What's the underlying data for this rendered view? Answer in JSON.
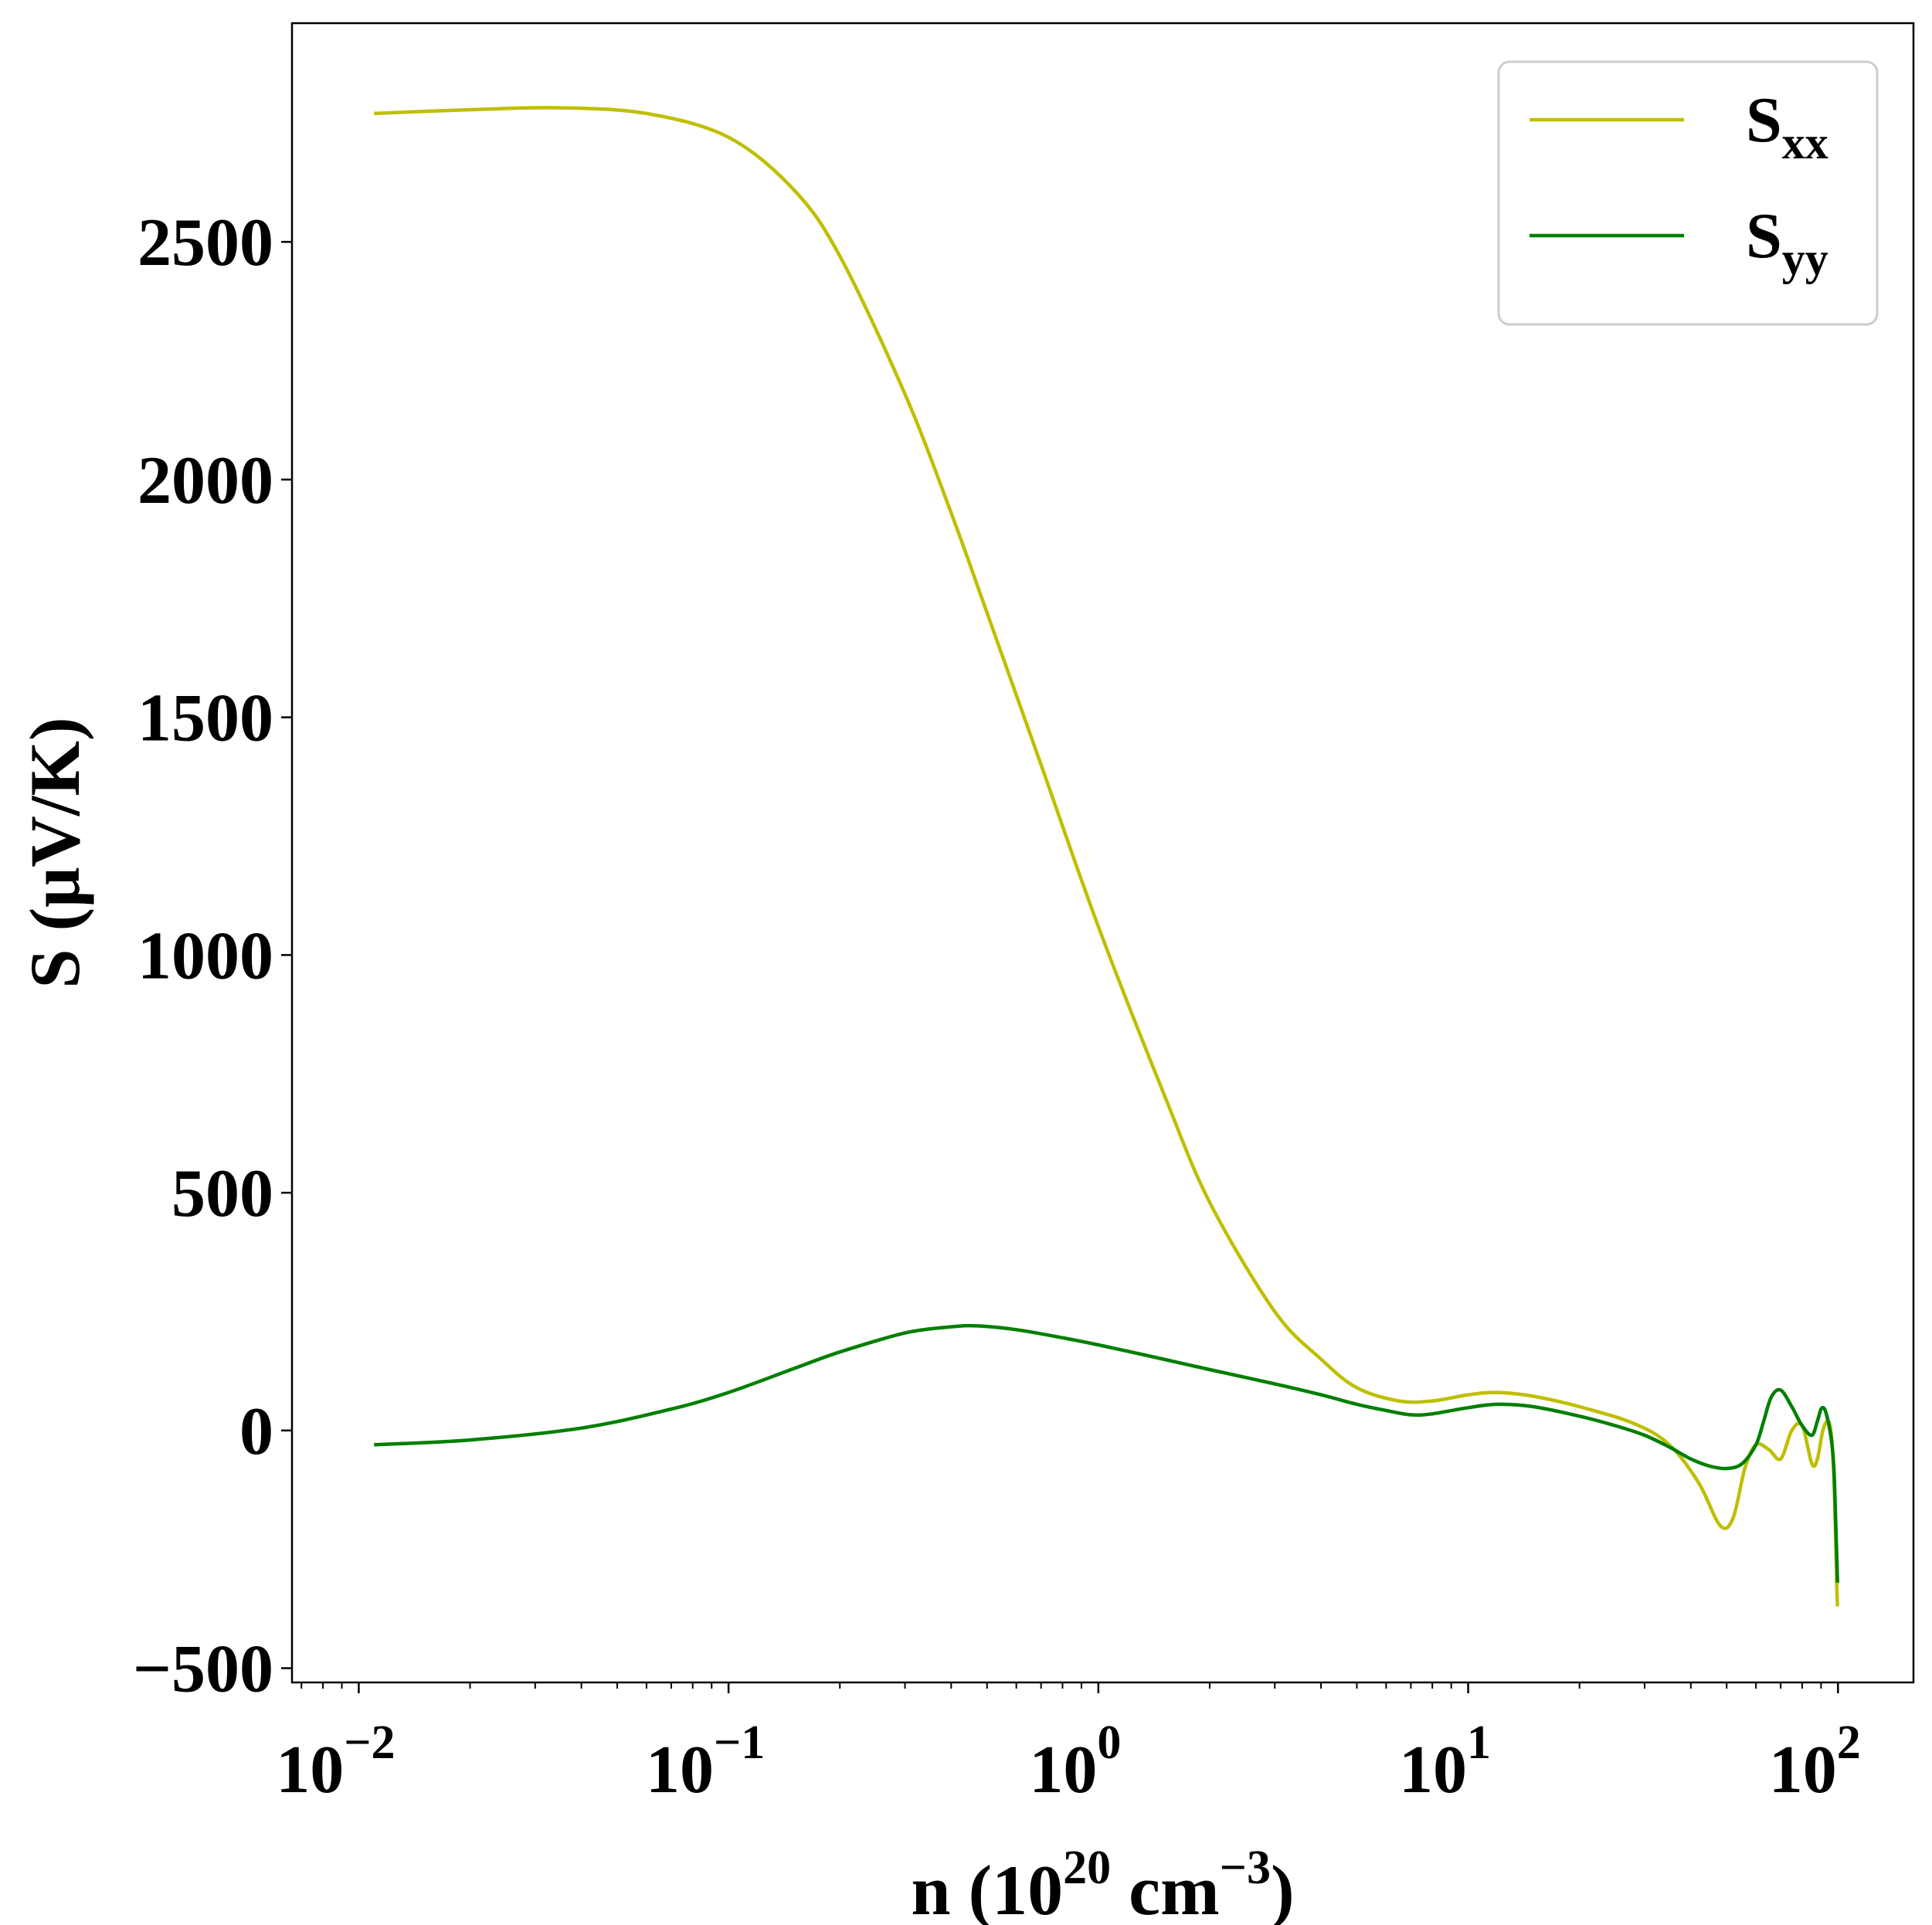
{
  "chart_data": {
    "type": "line",
    "title": "",
    "xlabel": {
      "prefix": "n (10",
      "sup1": "20",
      "middle": " cm",
      "sup2": "−3",
      "suffix": ")"
    },
    "ylabel": "S (μV/K)",
    "xscale": "log",
    "xlim": [
      0.0066,
      160
    ],
    "ylim": [
      -530,
      2960
    ],
    "grid": false,
    "legend_position": "top-right",
    "x_ticks": [
      {
        "value": 0.01,
        "base": "10",
        "exp": "−2"
      },
      {
        "value": 0.1,
        "base": "10",
        "exp": "−1"
      },
      {
        "value": 1,
        "base": "10",
        "exp": "0"
      },
      {
        "value": 10,
        "base": "10",
        "exp": "1"
      },
      {
        "value": 100,
        "base": "10",
        "exp": "2"
      }
    ],
    "y_ticks": [
      {
        "value": 2500,
        "label": "2500"
      },
      {
        "value": 2000,
        "label": "2000"
      },
      {
        "value": 1500,
        "label": "1500"
      },
      {
        "value": 1000,
        "label": "1000"
      },
      {
        "value": 500,
        "label": "500"
      },
      {
        "value": 0,
        "label": "0"
      },
      {
        "value": -500,
        "label": "−500"
      }
    ],
    "series": [
      {
        "name": "S",
        "name_sub": "xx",
        "color": "#bfbf00",
        "x": [
          0.011,
          0.02,
          0.035,
          0.06,
          0.1,
          0.15,
          0.2,
          0.3,
          0.4,
          0.5,
          0.7,
          1.0,
          1.5,
          2.0,
          3.0,
          4.0,
          5.0,
          6.5,
          8.0,
          10.0,
          12.0,
          15.0,
          20.0,
          28.0,
          35.0,
          42.0,
          48.0,
          52.0,
          56.0,
          60.0,
          65.0,
          70.0,
          75.0,
          80.0,
          85.0,
          88.0,
          91.0,
          94.0,
          96.0,
          97.5,
          98.5,
          99.2,
          99.7
        ],
        "y": [
          2770,
          2778,
          2782,
          2770,
          2720,
          2610,
          2470,
          2180,
          1930,
          1720,
          1400,
          1060,
          710,
          480,
          250,
          150,
          90,
          62,
          62,
          75,
          80,
          72,
          50,
          15,
          -30,
          -110,
          -200,
          -185,
          -80,
          -30,
          -40,
          -60,
          0,
          10,
          -70,
          -60,
          0,
          20,
          -10,
          -100,
          -220,
          -320,
          -370
        ]
      },
      {
        "name": "S",
        "name_sub": "yy",
        "color": "#007f00",
        "x": [
          0.011,
          0.02,
          0.04,
          0.07,
          0.1,
          0.15,
          0.2,
          0.3,
          0.4,
          0.47,
          0.6,
          0.8,
          1.0,
          1.5,
          2.0,
          3.0,
          4.0,
          5.0,
          6.0,
          7.0,
          8.0,
          10.0,
          12.0,
          15.0,
          20.0,
          25.0,
          30.0,
          35.0,
          40.0,
          45.0,
          50.0,
          55.0,
          60.0,
          63.0,
          66.0,
          70.0,
          75.0,
          80.0,
          85.0,
          88.0,
          90.0,
          92.0,
          94.0,
          96.0,
          97.5,
          98.5,
          99.2,
          99.7
        ],
        "y": [
          -30,
          -20,
          5,
          45,
          80,
          130,
          165,
          205,
          218,
          220,
          212,
          195,
          180,
          150,
          128,
          98,
          75,
          55,
          42,
          33,
          35,
          48,
          55,
          50,
          30,
          10,
          -10,
          -35,
          -60,
          -75,
          -80,
          -70,
          -30,
          20,
          70,
          85,
          50,
          10,
          -10,
          20,
          45,
          45,
          20,
          -20,
          -80,
          -180,
          -260,
          -320
        ]
      }
    ]
  }
}
